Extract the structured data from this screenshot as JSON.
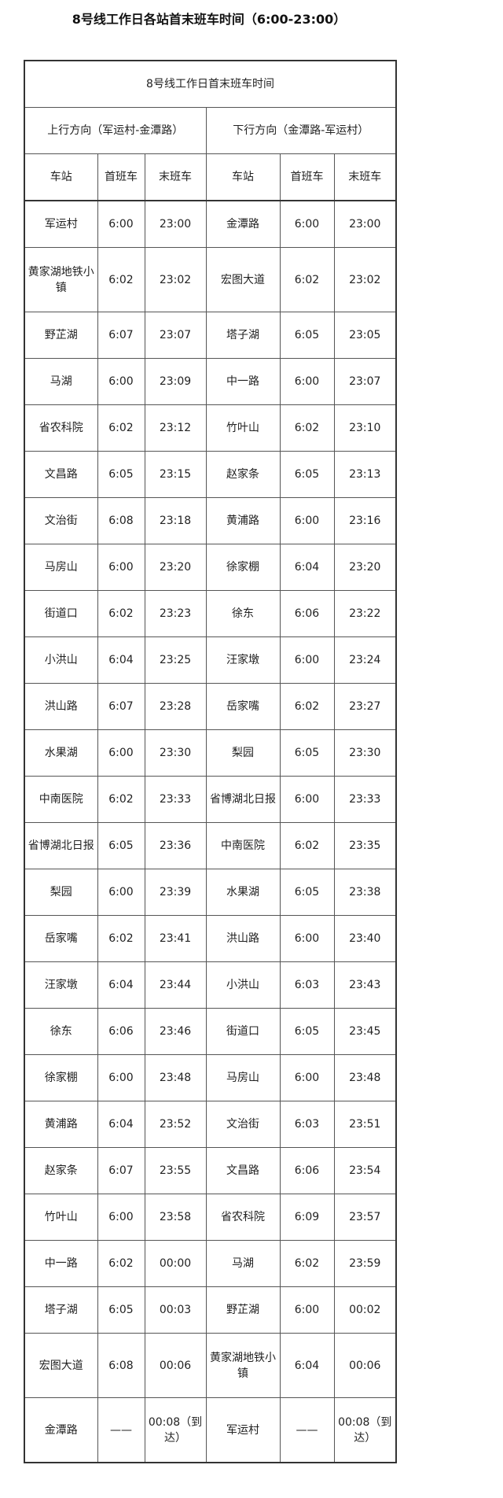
{
  "page_title": "8号线工作日各站首末班车时间（6:00-23:00）",
  "table": {
    "caption": "8号线工作日首末班车时间",
    "up_direction": "上行方向（军运村-金潭路）",
    "down_direction": "下行方向（金潭路-军运村）",
    "headers": [
      "车站",
      "首班车",
      "末班车",
      "车站",
      "首班车",
      "末班车"
    ],
    "rows": [
      [
        "军运村",
        "6:00",
        "23:00",
        "金潭路",
        "6:00",
        "23:00"
      ],
      [
        "黄家湖地铁小镇",
        "6:02",
        "23:02",
        "宏图大道",
        "6:02",
        "23:02"
      ],
      [
        "野芷湖",
        "6:07",
        "23:07",
        "塔子湖",
        "6:05",
        "23:05"
      ],
      [
        "马湖",
        "6:00",
        "23:09",
        "中一路",
        "6:00",
        "23:07"
      ],
      [
        "省农科院",
        "6:02",
        "23:12",
        "竹叶山",
        "6:02",
        "23:10"
      ],
      [
        "文昌路",
        "6:05",
        "23:15",
        "赵家条",
        "6:05",
        "23:13"
      ],
      [
        "文治街",
        "6:08",
        "23:18",
        "黄浦路",
        "6:00",
        "23:16"
      ],
      [
        "马房山",
        "6:00",
        "23:20",
        "徐家棚",
        "6:04",
        "23:20"
      ],
      [
        "街道口",
        "6:02",
        "23:23",
        "徐东",
        "6:06",
        "23:22"
      ],
      [
        "小洪山",
        "6:04",
        "23:25",
        "汪家墩",
        "6:00",
        "23:24"
      ],
      [
        "洪山路",
        "6:07",
        "23:28",
        "岳家嘴",
        "6:02",
        "23:27"
      ],
      [
        "水果湖",
        "6:00",
        "23:30",
        "梨园",
        "6:05",
        "23:30"
      ],
      [
        "中南医院",
        "6:02",
        "23:33",
        "省博湖北日报",
        "6:00",
        "23:33"
      ],
      [
        "省博湖北日报",
        "6:05",
        "23:36",
        "中南医院",
        "6:02",
        "23:35"
      ],
      [
        "梨园",
        "6:00",
        "23:39",
        "水果湖",
        "6:05",
        "23:38"
      ],
      [
        "岳家嘴",
        "6:02",
        "23:41",
        "洪山路",
        "6:00",
        "23:40"
      ],
      [
        "汪家墩",
        "6:04",
        "23:44",
        "小洪山",
        "6:03",
        "23:43"
      ],
      [
        "徐东",
        "6:06",
        "23:46",
        "街道口",
        "6:05",
        "23:45"
      ],
      [
        "徐家棚",
        "6:00",
        "23:48",
        "马房山",
        "6:00",
        "23:48"
      ],
      [
        "黄浦路",
        "6:04",
        "23:52",
        "文治街",
        "6:03",
        "23:51"
      ],
      [
        "赵家条",
        "6:07",
        "23:55",
        "文昌路",
        "6:06",
        "23:54"
      ],
      [
        "竹叶山",
        "6:00",
        "23:58",
        "省农科院",
        "6:09",
        "23:57"
      ],
      [
        "中一路",
        "6:02",
        "00:00",
        "马湖",
        "6:02",
        "23:59"
      ],
      [
        "塔子湖",
        "6:05",
        "00:03",
        "野芷湖",
        "6:00",
        "00:02"
      ],
      [
        "宏图大道",
        "6:08",
        "00:06",
        "黄家湖地铁小镇",
        "6:04",
        "00:06"
      ],
      [
        "金潭路",
        "——",
        "00:08（到达）",
        "军运村",
        "——",
        "00:08（到达）"
      ]
    ]
  }
}
